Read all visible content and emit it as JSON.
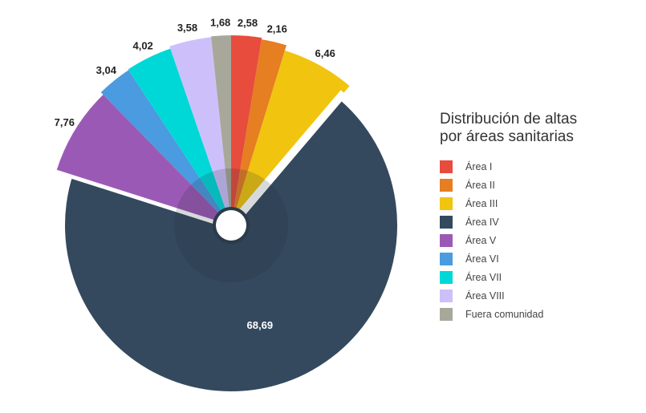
{
  "chart_data": {
    "type": "pie",
    "title": "Distribución de altas por áreas sanitarias",
    "legend_position": "right",
    "slices": [
      {
        "label": "Área I",
        "value": 2.58,
        "display": "2,58",
        "color": "#e74c3c"
      },
      {
        "label": "Área II",
        "value": 2.16,
        "display": "2,16",
        "color": "#e67e22"
      },
      {
        "label": "Área III",
        "value": 6.46,
        "display": "6,46",
        "color": "#f1c40f"
      },
      {
        "label": "Área IV",
        "value": 68.69,
        "display": "68,69",
        "color": "#34495e"
      },
      {
        "label": "Área V",
        "value": 7.76,
        "display": "7,76",
        "color": "#9b59b6"
      },
      {
        "label": "Área VI",
        "value": 3.04,
        "display": "3,04",
        "color": "#4a9be0"
      },
      {
        "label": "Área VII",
        "value": 4.02,
        "display": "4,02",
        "color": "#00d8d8"
      },
      {
        "label": "Área VIII",
        "value": 3.58,
        "display": "3,58",
        "color": "#cdc0fa"
      },
      {
        "label": "Fuera comunidad",
        "value": 1.68,
        "display": "1,68",
        "color": "#a8a89a"
      }
    ]
  }
}
